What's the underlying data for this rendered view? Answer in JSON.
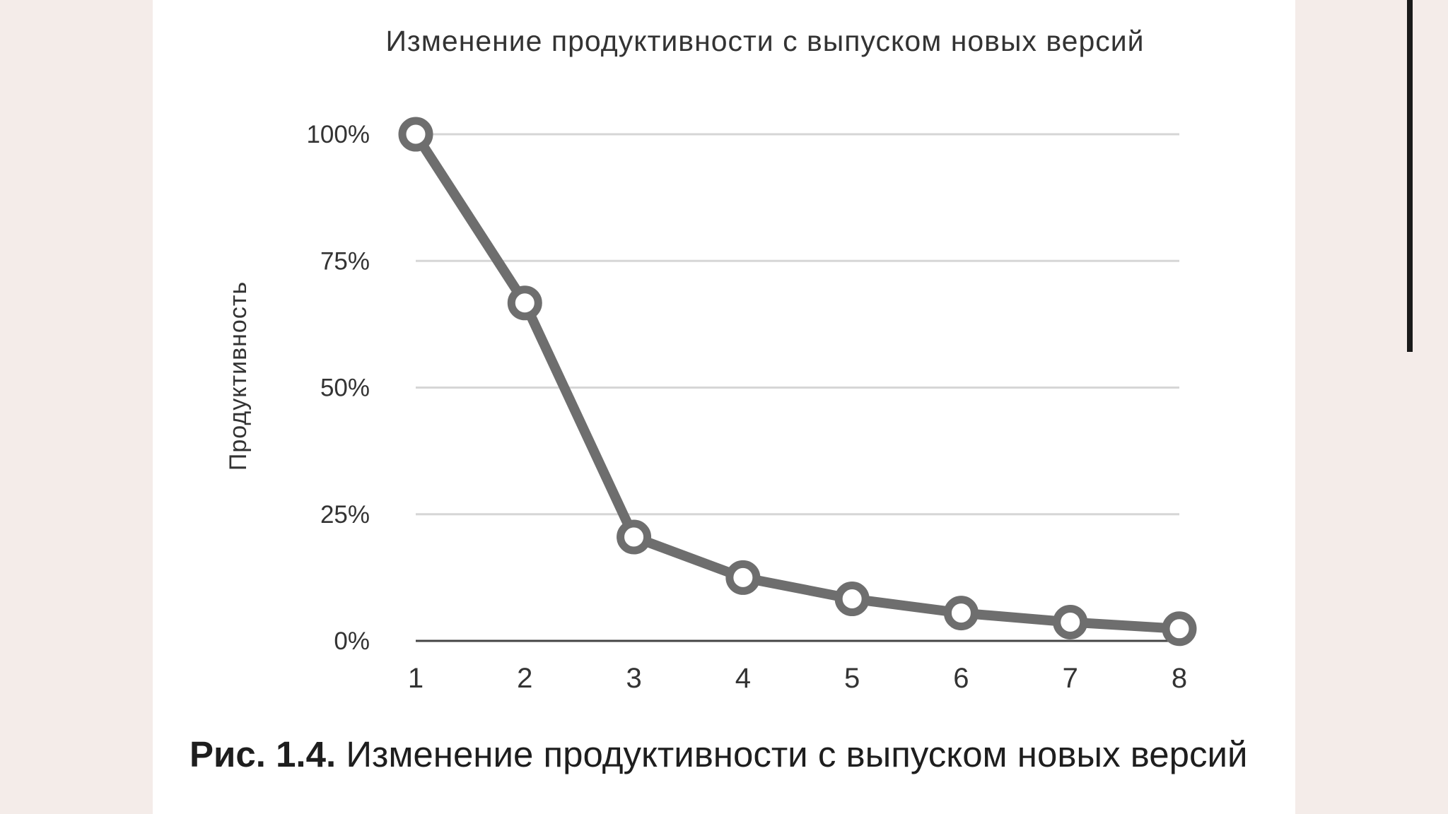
{
  "chart_data": {
    "type": "line",
    "title": "Изменение продуктивности с выпуском новых версий",
    "xlabel": "",
    "ylabel": "Продуктивность",
    "x": [
      1,
      2,
      3,
      4,
      5,
      6,
      7,
      8
    ],
    "x_tick_labels": [
      "1",
      "2",
      "3",
      "4",
      "5",
      "6",
      "7",
      "8"
    ],
    "y_tick_labels": [
      "100%",
      "75%",
      "50%",
      "25%",
      "0%"
    ],
    "y_ticks": [
      100,
      75,
      50,
      25,
      0
    ],
    "ylim": [
      0,
      100
    ],
    "grid": true,
    "series": [
      {
        "values": [
          100,
          66.7,
          20.5,
          12.5,
          8.3,
          5.5,
          3.7,
          2.4
        ]
      }
    ],
    "colors": {
      "line": "#6e6e6e",
      "gridline": "#d6d6d6",
      "axis": "#444444"
    }
  },
  "caption": {
    "label": "Рис. 1.4.",
    "text": "Изменение продуктивности с выпуском новых версий"
  }
}
